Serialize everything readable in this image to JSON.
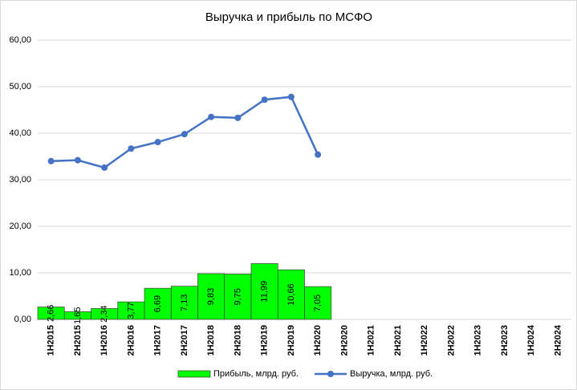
{
  "chart_data": {
    "type": "bar_line",
    "title": "Выручка и прибыль по МСФО",
    "categories": [
      "1H2015",
      "2H2015",
      "1H2016",
      "2H2016",
      "1H2017",
      "2H2017",
      "1H2018",
      "2H2018",
      "1H2019",
      "2H2019",
      "1H2020",
      "2H2020",
      "1H2021",
      "2H2021",
      "1H2022",
      "2H2022",
      "1H2023",
      "2H2023",
      "1H2024",
      "2H2024"
    ],
    "series": [
      {
        "name": "Прибыль, млрд. руб.",
        "type": "bar",
        "color": "#00ff00",
        "values": [
          2.66,
          1.65,
          2.34,
          3.77,
          6.69,
          7.13,
          9.83,
          9.75,
          11.99,
          10.66,
          7.05,
          null,
          null,
          null,
          null,
          null,
          null,
          null,
          null,
          null
        ],
        "value_labels": [
          "2,66",
          "1,65",
          "2,34",
          "3,77",
          "6,69",
          "7,13",
          "9,83",
          "9,75",
          "11,99",
          "10,66",
          "7,05",
          null,
          null,
          null,
          null,
          null,
          null,
          null,
          null,
          null
        ]
      },
      {
        "name": "Выручка, млрд. руб.",
        "type": "line",
        "color": "#4472c4",
        "values": [
          34.0,
          34.2,
          32.6,
          36.7,
          38.1,
          39.8,
          43.5,
          43.3,
          47.2,
          47.8,
          35.4,
          null,
          null,
          null,
          null,
          null,
          null,
          null,
          null,
          null
        ]
      }
    ],
    "ylim": [
      0,
      60
    ],
    "yticks": [
      {
        "value": 0,
        "label": "0,00"
      },
      {
        "value": 10,
        "label": "10,00"
      },
      {
        "value": 20,
        "label": "20,00"
      },
      {
        "value": 30,
        "label": "30,00"
      },
      {
        "value": 40,
        "label": "40,00"
      },
      {
        "value": 50,
        "label": "50,00"
      },
      {
        "value": 60,
        "label": "60,00"
      }
    ],
    "grid": true,
    "legend": "bottom"
  }
}
